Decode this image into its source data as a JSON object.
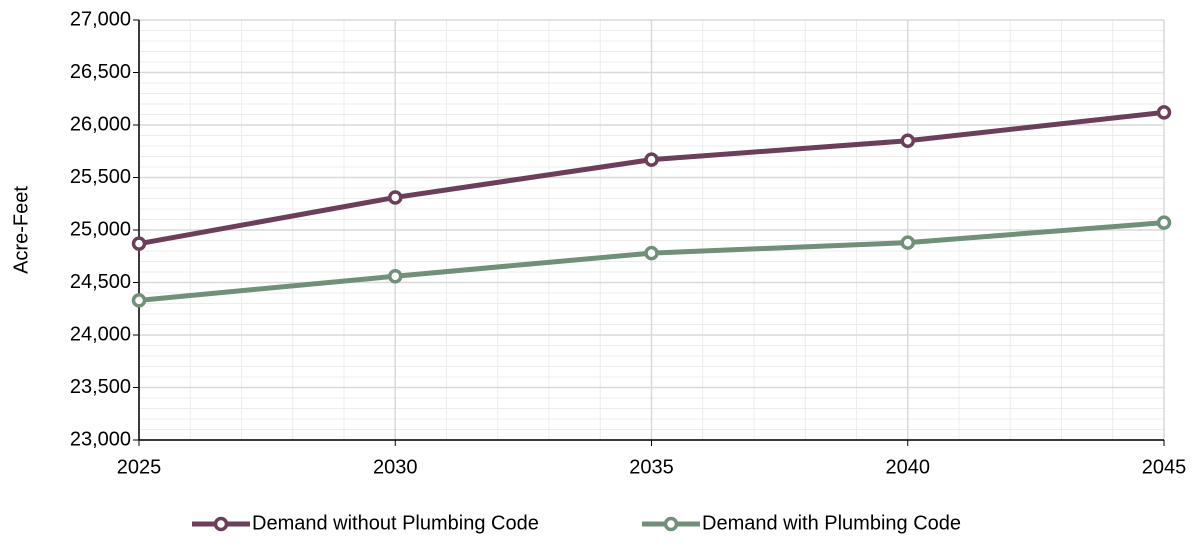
{
  "chart_data": {
    "type": "line",
    "y_label": "Acre-Feet",
    "x": [
      2025,
      2030,
      2035,
      2040,
      2045
    ],
    "series": [
      {
        "name": "Demand without Plumbing Code",
        "color": "#6b3f5a",
        "values": [
          24870,
          25310,
          25670,
          25850,
          26120
        ]
      },
      {
        "name": "Demand with Plumbing Code",
        "color": "#71907a",
        "values": [
          24330,
          24560,
          24780,
          24880,
          25070
        ]
      }
    ],
    "xlim": [
      2025,
      2045
    ],
    "xticks": [
      2025,
      2030,
      2035,
      2040,
      2045
    ],
    "ylim": [
      23000,
      27000
    ],
    "yticks": [
      {
        "value": 23000,
        "label": "23,000"
      },
      {
        "value": 23500,
        "label": "23,500"
      },
      {
        "value": 24000,
        "label": "24,000"
      },
      {
        "value": 24500,
        "label": "24,500"
      },
      {
        "value": 25000,
        "label": "25,000"
      },
      {
        "value": 25500,
        "label": "25,500"
      },
      {
        "value": 26000,
        "label": "26,000"
      },
      {
        "value": 26500,
        "label": "26,500"
      },
      {
        "value": 27000,
        "label": "27,000"
      }
    ],
    "grid": true,
    "minor_grid": true,
    "legend": "bottom"
  }
}
